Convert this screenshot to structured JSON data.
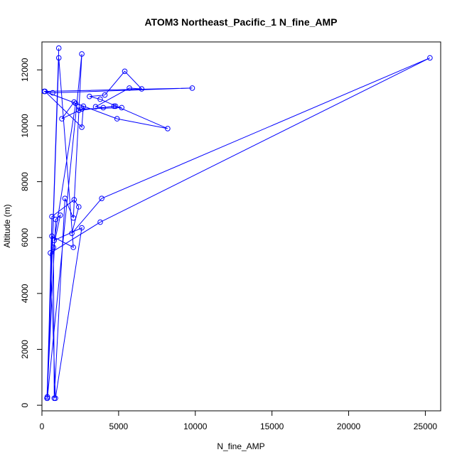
{
  "chart_data": {
    "type": "line",
    "title": "ATOM3 Northeast_Pacific_1 N_fine_AMP",
    "xlabel": "N_fine_AMP",
    "ylabel": "Altitude (m)",
    "xlim": [
      0,
      26000
    ],
    "ylim": [
      -200,
      13000
    ],
    "xticks": [
      0,
      5000,
      10000,
      15000,
      20000,
      25000
    ],
    "yticks": [
      0,
      2000,
      4000,
      6000,
      8000,
      10000,
      12000
    ],
    "grid": false,
    "series": [
      {
        "color": "#0000ff",
        "marker": "open-circle",
        "points": [
          [
            1100,
            12780
          ],
          [
            350,
            300
          ],
          [
            1100,
            12430
          ],
          [
            2050,
            5650
          ],
          [
            650,
            6050
          ],
          [
            330,
            250
          ],
          [
            900,
            6650
          ],
          [
            1200,
            6800
          ],
          [
            750,
            5650
          ],
          [
            800,
            250
          ],
          [
            1500,
            7400
          ],
          [
            2050,
            6700
          ],
          [
            2600,
            12570
          ],
          [
            350,
            250
          ],
          [
            650,
            6750
          ],
          [
            2100,
            7350
          ],
          [
            2400,
            7100
          ],
          [
            1950,
            6150
          ],
          [
            3900,
            7400
          ],
          [
            25300,
            12430
          ],
          [
            3800,
            6550
          ],
          [
            550,
            5450
          ],
          [
            880,
            250
          ],
          [
            2600,
            6350
          ],
          [
            800,
            5900
          ],
          [
            2200,
            10800
          ],
          [
            2700,
            10700
          ],
          [
            2600,
            9950
          ],
          [
            200,
            11230
          ],
          [
            700,
            11180
          ],
          [
            9800,
            11350
          ],
          [
            150,
            11230
          ],
          [
            4900,
            10250
          ],
          [
            8200,
            9900
          ],
          [
            3800,
            10950
          ],
          [
            3100,
            11050
          ],
          [
            4100,
            11100
          ],
          [
            5400,
            11950
          ],
          [
            6500,
            11320
          ],
          [
            5700,
            11350
          ],
          [
            3500,
            10680
          ],
          [
            4000,
            10650
          ],
          [
            4700,
            10700
          ],
          [
            5200,
            10650
          ],
          [
            2600,
            10600
          ],
          [
            1300,
            10250
          ],
          [
            2100,
            10850
          ],
          [
            2400,
            10550
          ],
          [
            4800,
            10700
          ]
        ]
      }
    ]
  }
}
